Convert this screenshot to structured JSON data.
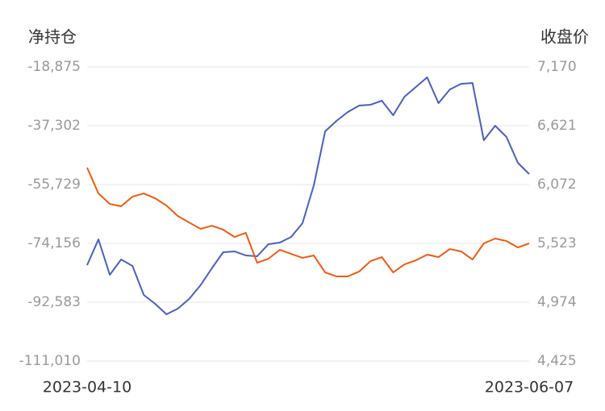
{
  "chart_data": {
    "type": "line",
    "y_label": "净持仓",
    "y2_label": "收盘价",
    "categories": [
      "2023-04-10",
      null,
      null,
      null,
      null,
      null,
      null,
      null,
      null,
      null,
      null,
      null,
      null,
      null,
      null,
      null,
      null,
      null,
      null,
      null,
      null,
      null,
      null,
      null,
      null,
      null,
      null,
      null,
      null,
      null,
      null,
      null,
      null,
      null,
      null,
      null,
      null,
      null,
      null,
      "2023-06-07"
    ],
    "series": [
      {
        "color": "#4a5fc1",
        "axis": "y",
        "values": [
          -80970,
          -72893,
          -83999,
          -79203,
          -81223,
          -90310,
          -93086,
          -96368,
          -94601,
          -91572,
          -87281,
          -81980,
          -76932,
          -76679,
          -77941,
          -78194,
          -74407,
          -73903,
          -72136,
          -67844,
          -55981,
          -39069,
          -35787,
          -33011,
          -30991,
          -30739,
          -29477,
          -34020,
          -28215,
          -25186,
          -22156,
          -30234,
          -25943,
          -24176,
          -23923,
          -41845,
          -37302,
          -40836,
          -48913,
          -52447
        ]
      },
      {
        "color": "#f25a0e",
        "axis": "y2",
        "values": [
          6230,
          5989,
          5891,
          5869,
          5959,
          5989,
          5944,
          5876,
          5779,
          5718,
          5658,
          5688,
          5651,
          5583,
          5621,
          5342,
          5380,
          5463,
          5425,
          5388,
          5410,
          5252,
          5215,
          5215,
          5260,
          5357,
          5395,
          5252,
          5327,
          5365,
          5418,
          5395,
          5470,
          5448,
          5372,
          5523,
          5568,
          5545,
          5485,
          5523
        ]
      }
    ],
    "ylim": [
      -111010,
      -18875
    ],
    "yticks": [
      {
        "value": -18875,
        "label": "-18,875"
      },
      {
        "value": -37302,
        "label": "-37,302"
      },
      {
        "value": -55729,
        "label": "-55,729"
      },
      {
        "value": -74156,
        "label": "-74,156"
      },
      {
        "value": -92583,
        "label": "-92,583"
      },
      {
        "value": -111010,
        "label": "-111,010"
      }
    ],
    "y2lim": [
      4425,
      7170
    ],
    "y2ticks": [
      {
        "value": 7170,
        "label": "7,170"
      },
      {
        "value": 6621,
        "label": "6,621"
      },
      {
        "value": 6072,
        "label": "6,072"
      },
      {
        "value": 5523,
        "label": "5,523"
      },
      {
        "value": 4974,
        "label": "4,974"
      },
      {
        "value": 4425,
        "label": "4,425"
      }
    ],
    "grid": true
  }
}
